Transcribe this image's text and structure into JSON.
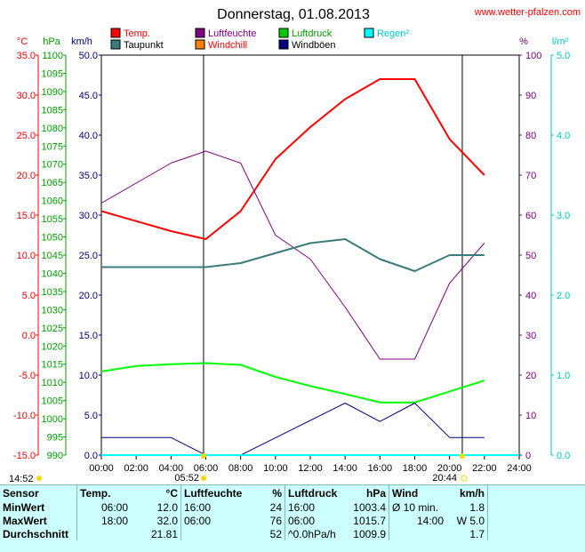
{
  "site": "www.wetter-pfalzen.com",
  "chart_data": {
    "type": "line",
    "title": "Donnerstag, 01.08.2013",
    "legend": [
      {
        "name": "Temp.",
        "color": "#ff0000",
        "text_color": "#ff0000"
      },
      {
        "name": "Luftfeuchte",
        "color": "#800080",
        "text_color": "#800080"
      },
      {
        "name": "Luftdruck",
        "color": "#00cc00",
        "text_color": "#00a000"
      },
      {
        "name": "Regen²",
        "color": "#00ffff",
        "text_color": "#00c8c8"
      },
      {
        "name": "Taupunkt",
        "color": "#3a7b7b",
        "text_color": "#000000"
      },
      {
        "name": "Windchill",
        "color": "#ff8000",
        "text_color": "#ff0000"
      },
      {
        "name": "Windböen",
        "color": "#000080",
        "text_color": "#000000"
      }
    ],
    "legend_placement": "top",
    "grid": false,
    "xlim": [
      0,
      24
    ],
    "x_ticks": [
      0,
      2,
      4,
      6,
      8,
      10,
      12,
      14,
      16,
      18,
      20,
      22,
      24
    ],
    "x_tick_labels": [
      "00:00",
      "02:00",
      "04:00",
      "06:00",
      "08:00",
      "10:00",
      "12:00",
      "14:00",
      "16:00",
      "18:00",
      "20:00",
      "22:00",
      "24:00"
    ],
    "axes": {
      "celsius": {
        "label": "°C",
        "color": "#ff0000",
        "range": [
          -15,
          35
        ],
        "ticks": [
          "35.0",
          "30.0",
          "25.0",
          "20.0",
          "15.0",
          "10.0",
          "5.0",
          "0.0",
          "-5.0",
          "-10.0",
          "-15.0"
        ]
      },
      "hpa": {
        "label": "hPa",
        "color": "#00a000",
        "range": [
          990,
          1100
        ],
        "ticks": [
          "1100",
          "1095",
          "1090",
          "1085",
          "1080",
          "1075",
          "1070",
          "1065",
          "1060",
          "1055",
          "1050",
          "1045",
          "1040",
          "1035",
          "1030",
          "1025",
          "1020",
          "1015",
          "1010",
          "1005",
          "1000",
          "995",
          "990"
        ]
      },
      "kmh": {
        "label": "km/h",
        "color": "#000080",
        "range": [
          0,
          50
        ],
        "ticks": [
          "50.0",
          "45.0",
          "40.0",
          "35.0",
          "30.0",
          "25.0",
          "20.0",
          "15.0",
          "10.0",
          "5.0",
          "0.0"
        ]
      },
      "percent": {
        "label": "%",
        "color": "#800080",
        "range": [
          0,
          100
        ],
        "ticks": [
          "100",
          "90",
          "80",
          "70",
          "60",
          "50",
          "40",
          "30",
          "20",
          "10",
          "0"
        ]
      },
      "rain": {
        "label": "l/m²",
        "color": "#00c8c8",
        "range": [
          0,
          5
        ],
        "ticks": [
          "5.0",
          "4.0",
          "3.0",
          "2.0",
          "1.0",
          "0.0"
        ]
      }
    },
    "series": [
      {
        "name": "Temp.",
        "axis": "celsius",
        "color": "#ff0000",
        "width": 2,
        "x": [
          0,
          4,
          6,
          8,
          10,
          12,
          14,
          16,
          18,
          20,
          22
        ],
        "y": [
          15.5,
          13.0,
          12.0,
          15.5,
          22.0,
          26.0,
          29.5,
          32.0,
          32.0,
          24.5,
          20.0
        ]
      },
      {
        "name": "Luftfeuchte",
        "axis": "percent",
        "color": "#800080",
        "width": 1,
        "x": [
          0,
          2,
          4,
          6,
          8,
          10,
          12,
          14,
          16,
          18,
          20,
          22
        ],
        "y": [
          63,
          68,
          73,
          76,
          73,
          55,
          49,
          37,
          24,
          24,
          43,
          53
        ]
      },
      {
        "name": "Luftdruck",
        "axis": "hpa",
        "color": "#00ff00",
        "width": 2,
        "x": [
          0,
          2,
          4,
          6,
          8,
          10,
          12,
          14,
          16,
          18,
          20,
          22
        ],
        "y": [
          1013.0,
          1014.5,
          1015.0,
          1015.3,
          1014.8,
          1011.5,
          1009.0,
          1006.8,
          1004.5,
          1004.5,
          1007.5,
          1010.5
        ]
      },
      {
        "name": "Taupunkt",
        "axis": "celsius",
        "color": "#3a7b7b",
        "width": 2,
        "x": [
          0,
          4,
          6,
          8,
          12,
          14,
          16,
          18,
          20,
          22
        ],
        "y": [
          8.5,
          8.5,
          8.5,
          9.0,
          11.5,
          12.0,
          9.5,
          8.0,
          10.0,
          10.0
        ]
      },
      {
        "name": "Windböen",
        "axis": "kmh",
        "color": "#000080",
        "width": 1,
        "x": [
          0,
          4,
          6,
          8,
          14,
          16,
          18,
          20,
          22
        ],
        "y": [
          2.2,
          2.2,
          0.0,
          0.0,
          6.5,
          4.2,
          6.5,
          2.2,
          2.2
        ]
      },
      {
        "name": "Regen²",
        "axis": "rain",
        "color": "#00ffff",
        "width": 2,
        "x": [
          0,
          24
        ],
        "y": [
          0.0,
          0.0
        ]
      }
    ],
    "sun": {
      "sunrise": "05:52",
      "sunset": "20:44",
      "left_time": "14:52",
      "sunrise_hour": 5.87,
      "sunset_hour": 20.73
    }
  },
  "stats": {
    "headers": [
      "Sensor",
      "Temp.",
      "°C",
      "Luftfeuchte",
      "%",
      "Luftdruck",
      "hPa",
      "Wind",
      "km/h"
    ],
    "rows": [
      {
        "label": "MinWert",
        "temp_time": "06:00",
        "temp_val": "12.0",
        "hum_time": "16:00",
        "hum_val": "24",
        "press_time": "16:00",
        "press_val": "1003.4",
        "wind_label": "Ø 10 min.",
        "wind_val": "1.8"
      },
      {
        "label": "MaxWert",
        "temp_time": "18:00",
        "temp_val": "32.0",
        "hum_time": "06:00",
        "hum_val": "76",
        "press_time": "06:00",
        "press_val": "1015.7",
        "wind_label": "14:00",
        "wind_val": "W 5.0"
      },
      {
        "label": "Durchschnitt",
        "temp_time": "",
        "temp_val": "21.81",
        "hum_time": "",
        "hum_val": "52",
        "press_time": "^0.0hPa/h",
        "press_val": "1009.9",
        "wind_label": "",
        "wind_val": "1.7"
      }
    ]
  }
}
